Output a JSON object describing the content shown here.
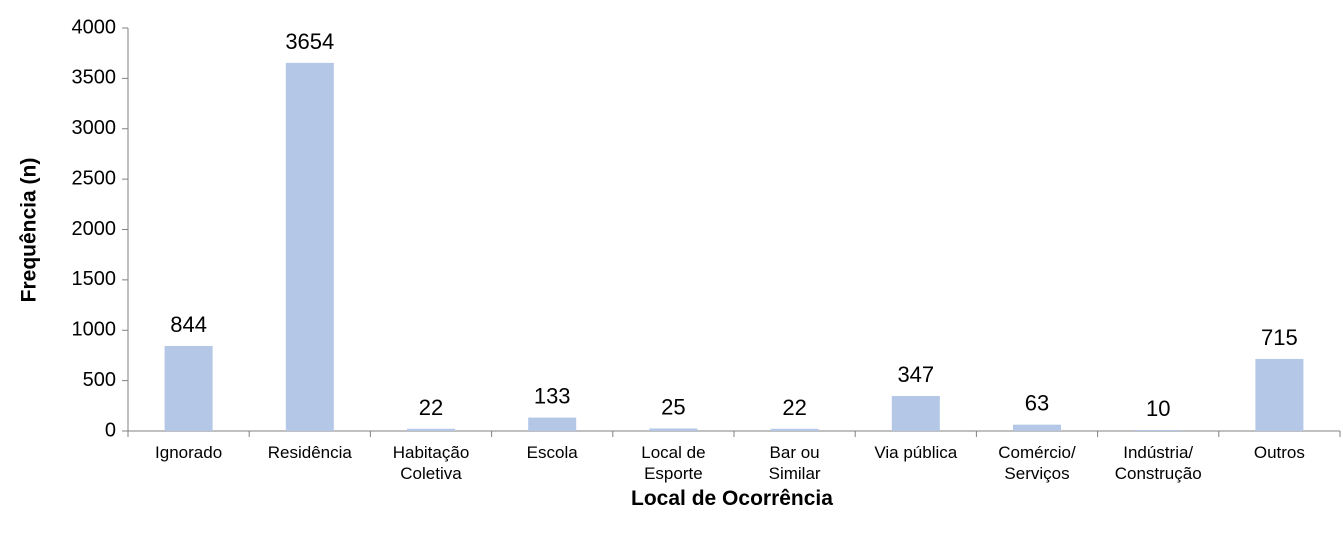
{
  "chart_data": {
    "type": "bar",
    "x_label": "Local de Ocorrência",
    "y_label": "Frequência (n)",
    "categories": [
      [
        "Ignorado"
      ],
      [
        "Residência"
      ],
      [
        "Habitação",
        "Coletiva"
      ],
      [
        "Escola"
      ],
      [
        "Local de",
        "Esporte"
      ],
      [
        "Bar ou",
        "Similar"
      ],
      [
        "Via pública"
      ],
      [
        "Comércio/",
        "Serviços"
      ],
      [
        "Indústria/",
        "Construção"
      ],
      [
        "Outros"
      ]
    ],
    "values": [
      844,
      3654,
      22,
      133,
      25,
      22,
      347,
      63,
      10,
      715
    ],
    "color": "#b4c7e7",
    "ylim": [
      0,
      4000
    ],
    "yticks": [
      0,
      500,
      1000,
      1500,
      2000,
      2500,
      3000,
      3500,
      4000
    ],
    "grid": false
  }
}
